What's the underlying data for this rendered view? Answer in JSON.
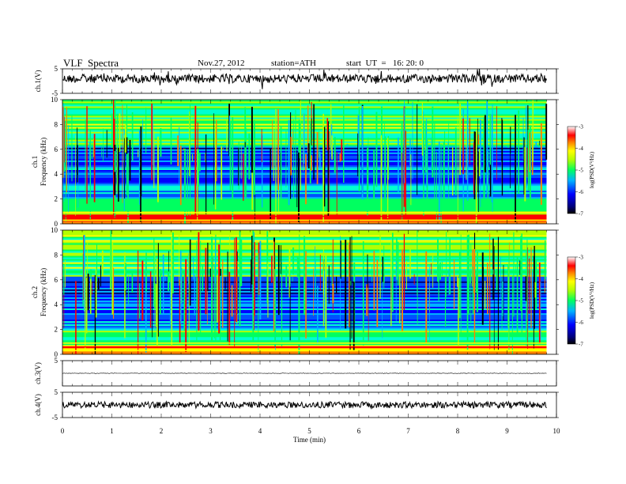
{
  "header": {
    "title": "VLF  Spectra",
    "date": "Nov.27, 2012",
    "station": "station=ATH",
    "start": "start  UT  =   16: 20: 0"
  },
  "chart_data": {
    "type": "heatmap",
    "title": "VLF  Spectra",
    "xlabel": "Time  (min)",
    "xlim": [
      0,
      10
    ],
    "x_ticks": [
      "0",
      "1",
      "2",
      "3",
      "4",
      "5",
      "6",
      "7",
      "8",
      "9",
      "10"
    ],
    "panels": [
      {
        "kind": "waveform",
        "ylabel": "ch.1(V)",
        "ylim": [
          -5,
          5
        ],
        "y_ticks": [
          "5",
          "-5"
        ],
        "amplitude": 0.35,
        "spikes": true
      },
      {
        "kind": "spectrogram",
        "ylabel_top": "ch.1",
        "ylabel": "Frequency  (kHz)",
        "ylim": [
          0,
          10
        ],
        "y_ticks": [
          "0",
          "2",
          "4",
          "6",
          "8",
          "10"
        ],
        "colorbar": {
          "label": "log(PSD(V²/Hz)",
          "range": [
            -7,
            -3
          ],
          "ticks": [
            "-3",
            "-4",
            "-5",
            "-6",
            "-7"
          ]
        }
      },
      {
        "kind": "spectrogram",
        "ylabel_top": "ch.2",
        "ylabel": "Frequency  (kHz)",
        "ylim": [
          0,
          10
        ],
        "y_ticks": [
          "0",
          "2",
          "4",
          "6",
          "8",
          "10"
        ],
        "colorbar": {
          "label": "log(PSD(V²/Hz)",
          "range": [
            -7,
            -3
          ],
          "ticks": [
            "-3",
            "-4",
            "-5",
            "-6",
            "-7"
          ]
        }
      },
      {
        "kind": "waveform",
        "ylabel": "ch.3(V)",
        "ylim": [
          -5,
          5
        ],
        "y_ticks": [
          "5"
        ],
        "amplitude": 0.02,
        "spikes": false
      },
      {
        "kind": "waveform",
        "ylabel": "ch.4(V)",
        "ylim": [
          -5,
          5
        ],
        "y_ticks": [
          "5",
          "-5"
        ],
        "amplitude": 0.25,
        "spikes": false
      }
    ],
    "data_end_minute": 9.8
  }
}
